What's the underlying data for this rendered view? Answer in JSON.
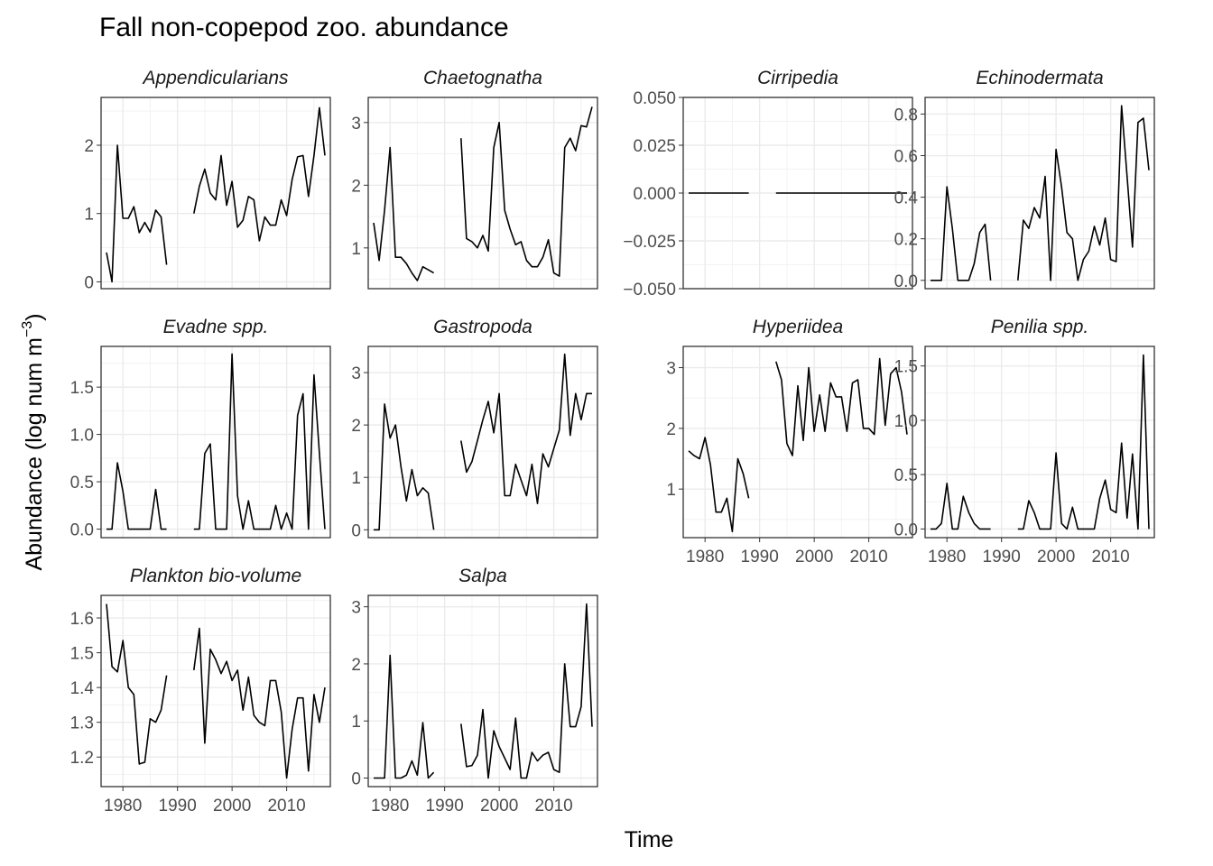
{
  "title": "Fall non-copepod zoo. abundance",
  "chart_data": {
    "type": "line",
    "layout": "facet-wrap 4 columns, free y scales",
    "title": "Fall non-copepod zoo. abundance",
    "xlabel": "Time",
    "ylabel_main": "Abundance (log num m",
    "ylabel_sup": "−3",
    "ylabel_end": ")",
    "xlim": [
      1976,
      2018
    ],
    "x_ticks": [
      1980,
      1990,
      2000,
      2010
    ],
    "grid": true,
    "line_color": "#000000",
    "panels": [
      {
        "name": "Appendicularians",
        "ylim": [
          -0.1,
          2.7
        ],
        "y_ticks": [
          0,
          1,
          2
        ],
        "y_tick_labels": [
          "0",
          "1",
          "2"
        ],
        "segments": [
          {
            "x": [
              1977,
              1978,
              1979,
              1980,
              1981,
              1982,
              1983,
              1984,
              1985,
              1986,
              1987,
              1988
            ],
            "y": [
              0.43,
              0.0,
              2.0,
              0.93,
              0.93,
              1.1,
              0.72,
              0.87,
              0.73,
              1.05,
              0.95,
              0.25
            ]
          },
          {
            "x": [
              1993,
              1994,
              1995,
              1996,
              1997,
              1998,
              1999,
              2000,
              2001,
              2002,
              2003,
              2004,
              2005,
              2006,
              2007,
              2008,
              2009,
              2010,
              2011,
              2012,
              2013,
              2014,
              2015,
              2016,
              2017
            ],
            "y": [
              1.0,
              1.4,
              1.65,
              1.3,
              1.2,
              1.85,
              1.12,
              1.47,
              0.8,
              0.9,
              1.25,
              1.2,
              0.6,
              0.95,
              0.83,
              0.83,
              1.2,
              0.97,
              1.5,
              1.83,
              1.85,
              1.25,
              1.85,
              2.55,
              1.85
            ]
          }
        ]
      },
      {
        "name": "Chaetognatha",
        "ylim": [
          0.35,
          3.4
        ],
        "y_ticks": [
          1,
          2,
          3
        ],
        "y_tick_labels": [
          "1",
          "2",
          "3"
        ],
        "segments": [
          {
            "x": [
              1977,
              1978,
              1979,
              1980,
              1981,
              1982,
              1983,
              1984,
              1985,
              1986,
              1987,
              1988
            ],
            "y": [
              1.4,
              0.8,
              1.6,
              2.6,
              0.85,
              0.85,
              0.75,
              0.6,
              0.48,
              0.7,
              0.65,
              0.6
            ]
          },
          {
            "x": [
              1993,
              1994,
              1995,
              1996,
              1997,
              1998,
              1999,
              2000,
              2001,
              2002,
              2003,
              2004,
              2005,
              2006,
              2007,
              2008,
              2009,
              2010,
              2011,
              2012,
              2013,
              2014,
              2015,
              2016,
              2017
            ],
            "y": [
              2.75,
              1.15,
              1.1,
              1.0,
              1.2,
              0.95,
              2.6,
              3.0,
              1.6,
              1.3,
              1.05,
              1.1,
              0.8,
              0.7,
              0.7,
              0.85,
              1.13,
              0.6,
              0.55,
              2.6,
              2.75,
              2.55,
              2.95,
              2.93,
              3.25
            ]
          }
        ]
      },
      {
        "name": "Cirripedia",
        "ylim": [
          -0.05,
          0.05
        ],
        "y_ticks": [
          -0.05,
          -0.025,
          0,
          0.025,
          0.05
        ],
        "y_tick_labels": [
          "−0.050",
          "−0.025",
          "0.000",
          "0.025",
          "0.050"
        ],
        "segments": [
          {
            "x": [
              1977,
              1988
            ],
            "y": [
              0,
              0
            ]
          },
          {
            "x": [
              1993,
              2017
            ],
            "y": [
              0,
              0
            ]
          }
        ]
      },
      {
        "name": "Echinodermata",
        "ylim": [
          -0.04,
          0.88
        ],
        "y_ticks": [
          0,
          0.2,
          0.4,
          0.6,
          0.8
        ],
        "y_tick_labels": [
          "0.0",
          "0.2",
          "0.4",
          "0.6",
          "0.8"
        ],
        "segments": [
          {
            "x": [
              1977,
              1978,
              1979,
              1980,
              1981,
              1982,
              1983,
              1984,
              1985,
              1986,
              1987,
              1988
            ],
            "y": [
              0.0,
              0.0,
              0.0,
              0.45,
              0.25,
              0.0,
              0.0,
              0.0,
              0.08,
              0.23,
              0.27,
              0.0
            ]
          },
          {
            "x": [
              1993,
              1994,
              1995,
              1996,
              1997,
              1998,
              1999,
              2000,
              2001,
              2002,
              2003,
              2004,
              2005,
              2006,
              2007,
              2008,
              2009,
              2010,
              2011,
              2012,
              2013,
              2014,
              2015,
              2016,
              2017
            ],
            "y": [
              0.0,
              0.29,
              0.25,
              0.35,
              0.3,
              0.5,
              0.0,
              0.63,
              0.45,
              0.23,
              0.2,
              0.0,
              0.1,
              0.14,
              0.26,
              0.17,
              0.3,
              0.1,
              0.09,
              0.84,
              0.5,
              0.16,
              0.76,
              0.78,
              0.53
            ]
          }
        ]
      },
      {
        "name": "Evadne spp.",
        "ylim": [
          -0.09,
          1.93
        ],
        "y_ticks": [
          0,
          0.5,
          1.0,
          1.5
        ],
        "y_tick_labels": [
          "0.0",
          "0.5",
          "1.0",
          "1.5"
        ],
        "segments": [
          {
            "x": [
              1977,
              1978,
              1979,
              1980,
              1981,
              1982,
              1983,
              1984,
              1985,
              1986,
              1987,
              1988
            ],
            "y": [
              0.0,
              0.0,
              0.7,
              0.4,
              0.0,
              0.0,
              0.0,
              0.0,
              0.0,
              0.42,
              0.0,
              0.0
            ]
          },
          {
            "x": [
              1993,
              1994,
              1995,
              1996,
              1997,
              1998,
              1999,
              2000,
              2001,
              2002,
              2003,
              2004,
              2005,
              2006,
              2007,
              2008,
              2009,
              2010,
              2011,
              2012,
              2013,
              2014,
              2015,
              2016,
              2017
            ],
            "y": [
              0.0,
              0.0,
              0.8,
              0.9,
              0.0,
              0.0,
              0.0,
              1.85,
              0.35,
              0.0,
              0.3,
              0.0,
              0.0,
              0.0,
              0.0,
              0.25,
              0.0,
              0.17,
              0.0,
              1.2,
              1.43,
              0.0,
              1.63,
              0.8,
              0.0
            ]
          }
        ]
      },
      {
        "name": "Gastropoda",
        "ylim": [
          -0.15,
          3.5
        ],
        "y_ticks": [
          0,
          1,
          2,
          3
        ],
        "y_tick_labels": [
          "0",
          "1",
          "2",
          "3"
        ],
        "segments": [
          {
            "x": [
              1977,
              1978,
              1979,
              1980,
              1981,
              1982,
              1983,
              1984,
              1985,
              1986,
              1987,
              1988
            ],
            "y": [
              0.0,
              0.0,
              2.4,
              1.75,
              2.0,
              1.2,
              0.55,
              1.15,
              0.65,
              0.8,
              0.7,
              0.0
            ]
          },
          {
            "x": [
              1993,
              1994,
              1995,
              1996,
              1997,
              1998,
              1999,
              2000,
              2001,
              2002,
              2003,
              2004,
              2005,
              2006,
              2007,
              2008,
              2009,
              2010,
              2011,
              2012,
              2013,
              2014,
              2015,
              2016,
              2017
            ],
            "y": [
              1.7,
              1.1,
              1.3,
              1.7,
              2.1,
              2.45,
              1.85,
              2.6,
              0.65,
              0.65,
              1.25,
              0.95,
              0.65,
              1.25,
              0.5,
              1.45,
              1.2,
              1.55,
              1.9,
              3.35,
              1.8,
              2.6,
              2.1,
              2.6,
              2.6
            ]
          }
        ]
      },
      {
        "name": "Hyperiidea",
        "ylim": [
          0.2,
          3.35
        ],
        "y_ticks": [
          1,
          2,
          3
        ],
        "y_tick_labels": [
          "1",
          "2",
          "3"
        ],
        "segments": [
          {
            "x": [
              1977,
              1978,
              1979,
              1980,
              1981,
              1982,
              1983,
              1984,
              1985,
              1986,
              1987,
              1988
            ],
            "y": [
              1.63,
              1.55,
              1.5,
              1.85,
              1.4,
              0.62,
              0.62,
              0.85,
              0.3,
              1.5,
              1.25,
              0.85
            ]
          },
          {
            "x": [
              1993,
              1994,
              1995,
              1996,
              1997,
              1998,
              1999,
              2000,
              2001,
              2002,
              2003,
              2004,
              2005,
              2006,
              2007,
              2008,
              2009,
              2010,
              2011,
              2012,
              2013,
              2014,
              2015,
              2016,
              2017
            ],
            "y": [
              3.1,
              2.8,
              1.75,
              1.55,
              2.7,
              1.8,
              3.0,
              1.95,
              2.55,
              1.95,
              2.75,
              2.52,
              2.52,
              1.95,
              2.75,
              2.8,
              2.0,
              2.0,
              1.9,
              3.15,
              2.05,
              2.9,
              3.0,
              2.6,
              1.9
            ]
          }
        ]
      },
      {
        "name": "Penilia spp.",
        "ylim": [
          -0.08,
          1.68
        ],
        "y_ticks": [
          0,
          0.5,
          1.0,
          1.5
        ],
        "y_tick_labels": [
          "0.0",
          "0.5",
          "1.0",
          "1.5"
        ],
        "segments": [
          {
            "x": [
              1977,
              1978,
              1979,
              1980,
              1981,
              1982,
              1983,
              1984,
              1985,
              1986,
              1987,
              1988
            ],
            "y": [
              0.0,
              0.0,
              0.05,
              0.42,
              0.0,
              0.0,
              0.3,
              0.15,
              0.05,
              0.0,
              0.0,
              0.0
            ]
          },
          {
            "x": [
              1993,
              1994,
              1995,
              1996,
              1997,
              1998,
              1999,
              2000,
              2001,
              2002,
              2003,
              2004,
              2005,
              2006,
              2007,
              2008,
              2009,
              2010,
              2011,
              2012,
              2013,
              2014,
              2015,
              2016,
              2017
            ],
            "y": [
              0.0,
              0.0,
              0.26,
              0.15,
              0.0,
              0.0,
              0.0,
              0.7,
              0.05,
              0.0,
              0.2,
              0.0,
              0.0,
              0.0,
              0.0,
              0.28,
              0.45,
              0.18,
              0.15,
              0.79,
              0.1,
              0.69,
              0.0,
              1.6,
              0.0
            ]
          }
        ]
      },
      {
        "name": "Plankton bio-volume",
        "ylim": [
          1.115,
          1.665
        ],
        "y_ticks": [
          1.2,
          1.3,
          1.4,
          1.5,
          1.6
        ],
        "y_tick_labels": [
          "1.2",
          "1.3",
          "1.4",
          "1.5",
          "1.6"
        ],
        "segments": [
          {
            "x": [
              1977,
              1978,
              1979,
              1980,
              1981,
              1982,
              1983,
              1984,
              1985,
              1986,
              1987,
              1988
            ],
            "y": [
              1.64,
              1.46,
              1.445,
              1.535,
              1.4,
              1.38,
              1.18,
              1.185,
              1.31,
              1.3,
              1.335,
              1.435
            ]
          },
          {
            "x": [
              1993,
              1994,
              1995,
              1996,
              1997,
              1998,
              1999,
              2000,
              2001,
              2002,
              2003,
              2004,
              2005,
              2006,
              2007,
              2008,
              2009,
              2010,
              2011,
              2012,
              2013,
              2014,
              2015,
              2016,
              2017
            ],
            "y": [
              1.45,
              1.57,
              1.24,
              1.51,
              1.48,
              1.44,
              1.475,
              1.42,
              1.45,
              1.335,
              1.43,
              1.32,
              1.3,
              1.29,
              1.42,
              1.42,
              1.33,
              1.14,
              1.28,
              1.37,
              1.37,
              1.16,
              1.38,
              1.3,
              1.4
            ]
          }
        ]
      },
      {
        "name": "Salpa",
        "ylim": [
          -0.15,
          3.2
        ],
        "y_ticks": [
          0,
          1,
          2,
          3
        ],
        "y_tick_labels": [
          "0",
          "1",
          "2",
          "3"
        ],
        "segments": [
          {
            "x": [
              1977,
              1978,
              1979,
              1980,
              1981,
              1982,
              1983,
              1984,
              1985,
              1986,
              1987,
              1988
            ],
            "y": [
              0.0,
              0.0,
              0.0,
              2.15,
              0.0,
              0.0,
              0.05,
              0.3,
              0.05,
              0.97,
              0.0,
              0.1
            ]
          },
          {
            "x": [
              1993,
              1994,
              1995,
              1996,
              1997,
              1998,
              1999,
              2000,
              2001,
              2002,
              2003,
              2004,
              2005,
              2006,
              2007,
              2008,
              2009,
              2010,
              2011,
              2012,
              2013,
              2014,
              2015,
              2016,
              2017
            ],
            "y": [
              0.95,
              0.2,
              0.22,
              0.4,
              1.2,
              0.0,
              0.83,
              0.55,
              0.35,
              0.15,
              1.05,
              0.0,
              0.0,
              0.45,
              0.3,
              0.4,
              0.45,
              0.15,
              0.1,
              2.0,
              0.9,
              0.9,
              1.25,
              3.05,
              0.9
            ]
          }
        ]
      }
    ]
  }
}
